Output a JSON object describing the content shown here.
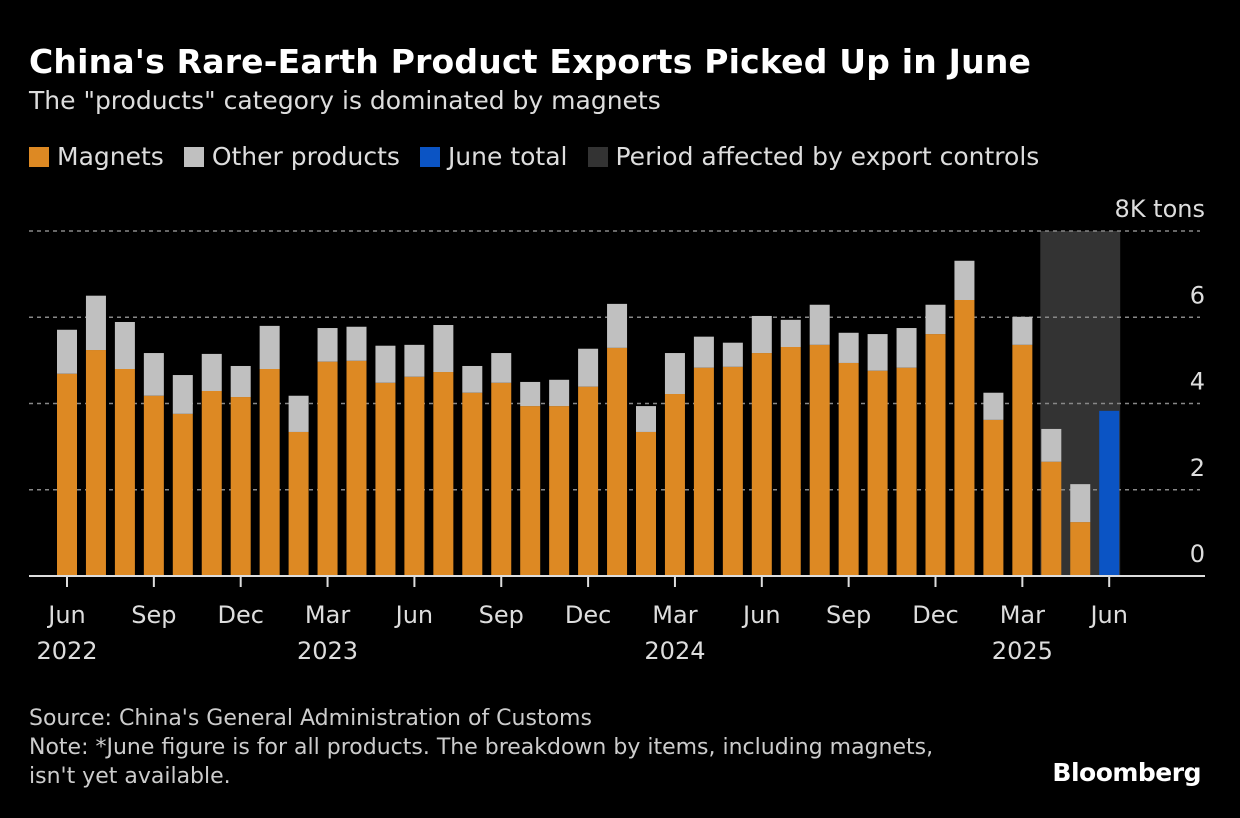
{
  "title": "China's Rare-Earth Product Exports Picked Up in June",
  "subtitle": "The \"products\" category is dominated by magnets",
  "legend": [
    {
      "label": "Magnets",
      "color": "#dd8923"
    },
    {
      "label": "Other products",
      "color": "#c0c0c0"
    },
    {
      "label": "June total",
      "color": "#0b54c4"
    },
    {
      "label": "Period affected by export controls",
      "color": "#333333"
    }
  ],
  "footer": {
    "source": "Source: China's General Administration of Customs",
    "note": "Note: *June figure is for all products. The breakdown by items, including magnets, isn't yet available.",
    "logo": "Bloomberg"
  },
  "chart_data": {
    "type": "bar",
    "stacked": true,
    "unit_label": "8K tons",
    "ylim": [
      0,
      8
    ],
    "y_ticks": [
      "0",
      "2",
      "4",
      "6",
      "8K tons"
    ],
    "grid": true,
    "legend_position": "top",
    "categories": [
      "Jun 2022",
      "Jul 2022",
      "Aug 2022",
      "Sep 2022",
      "Oct 2022",
      "Nov 2022",
      "Dec 2022",
      "Jan 2023",
      "Feb 2023",
      "Mar 2023",
      "Apr 2023",
      "May 2023",
      "Jun 2023",
      "Jul 2023",
      "Aug 2023",
      "Sep 2023",
      "Oct 2023",
      "Nov 2023",
      "Dec 2023",
      "Jan 2024",
      "Feb 2024",
      "Mar 2024",
      "Apr 2024",
      "May 2024",
      "Jun 2024",
      "Jul 2024",
      "Aug 2024",
      "Sep 2024",
      "Oct 2024",
      "Nov 2024",
      "Dec 2024",
      "Jan 2025",
      "Feb 2025",
      "Mar 2025",
      "Apr 2025",
      "May 2025",
      "Jun 2025"
    ],
    "x_tick_labels": [
      {
        "month": "Jun",
        "year": "2022",
        "index": 0
      },
      {
        "month": "Sep",
        "year": "",
        "index": 3
      },
      {
        "month": "Dec",
        "year": "",
        "index": 6
      },
      {
        "month": "Mar",
        "year": "2023",
        "index": 9
      },
      {
        "month": "Jun",
        "year": "",
        "index": 12
      },
      {
        "month": "Sep",
        "year": "",
        "index": 15
      },
      {
        "month": "Dec",
        "year": "",
        "index": 18
      },
      {
        "month": "Mar",
        "year": "2024",
        "index": 21
      },
      {
        "month": "Jun",
        "year": "",
        "index": 24
      },
      {
        "month": "Sep",
        "year": "",
        "index": 27
      },
      {
        "month": "Dec",
        "year": "",
        "index": 30
      },
      {
        "month": "Mar",
        "year": "2025",
        "index": 33
      },
      {
        "month": "Jun",
        "year": "",
        "index": 36
      }
    ],
    "series": [
      {
        "name": "Magnets",
        "values": [
          4.69,
          5.24,
          4.8,
          4.18,
          3.76,
          4.29,
          4.15,
          4.8,
          3.34,
          4.97,
          4.99,
          4.48,
          4.62,
          4.73,
          4.25,
          4.48,
          3.94,
          3.94,
          4.39,
          5.29,
          3.34,
          4.22,
          4.83,
          4.85,
          5.17,
          5.31,
          5.36,
          4.94,
          4.76,
          4.83,
          5.61,
          6.4,
          3.62,
          5.36,
          2.65,
          1.25,
          null
        ]
      },
      {
        "name": "Other products",
        "values": [
          1.02,
          1.26,
          1.09,
          0.99,
          0.9,
          0.86,
          0.72,
          1.0,
          0.84,
          0.78,
          0.79,
          0.86,
          0.74,
          1.09,
          0.62,
          0.69,
          0.56,
          0.61,
          0.88,
          1.02,
          0.6,
          0.95,
          0.72,
          0.56,
          0.86,
          0.63,
          0.93,
          0.7,
          0.85,
          0.92,
          0.68,
          0.91,
          0.63,
          0.65,
          0.76,
          0.88,
          null
        ]
      },
      {
        "name": "June total",
        "values": [
          null,
          null,
          null,
          null,
          null,
          null,
          null,
          null,
          null,
          null,
          null,
          null,
          null,
          null,
          null,
          null,
          null,
          null,
          null,
          null,
          null,
          null,
          null,
          null,
          null,
          null,
          null,
          null,
          null,
          null,
          null,
          null,
          null,
          null,
          null,
          null,
          3.83
        ]
      }
    ],
    "shaded_period": {
      "label": "Period affected by export controls",
      "from": "Apr 2025",
      "to": "Jun 2025"
    }
  }
}
